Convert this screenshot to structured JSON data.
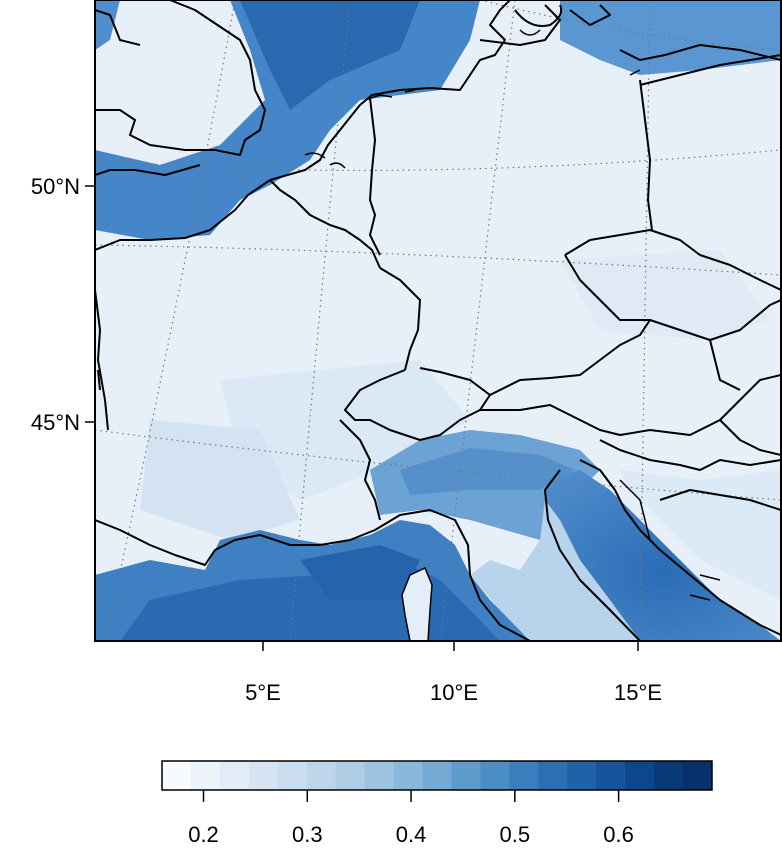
{
  "map": {
    "lat_labels": [
      "50°N",
      "45°N"
    ],
    "lon_labels": [
      "5°E",
      "10°E",
      "15°E"
    ],
    "colors": {
      "sea_dark": "#1f5fae",
      "sea_mid": "#4a88c8",
      "land_light": "#e9f1f9",
      "po_valley": "#5d97cf",
      "border": "#000000",
      "graticule": "#777777"
    }
  },
  "colorbar": {
    "ticks": [
      "0.2",
      "0.3",
      "0.4",
      "0.5",
      "0.6"
    ],
    "range": [
      0.16,
      0.69
    ],
    "colors": [
      "#f7fbff",
      "#ecf3fb",
      "#e1ecf8",
      "#d6e5f4",
      "#cbdef0",
      "#bdd6eb",
      "#aecde5",
      "#9cc3e0",
      "#89b8da",
      "#74aad4",
      "#5f9ccd",
      "#4b8dc5",
      "#3a7ebd",
      "#2c70b3",
      "#2062a8",
      "#16549c",
      "#0d468b",
      "#083a78",
      "#08306b"
    ]
  }
}
